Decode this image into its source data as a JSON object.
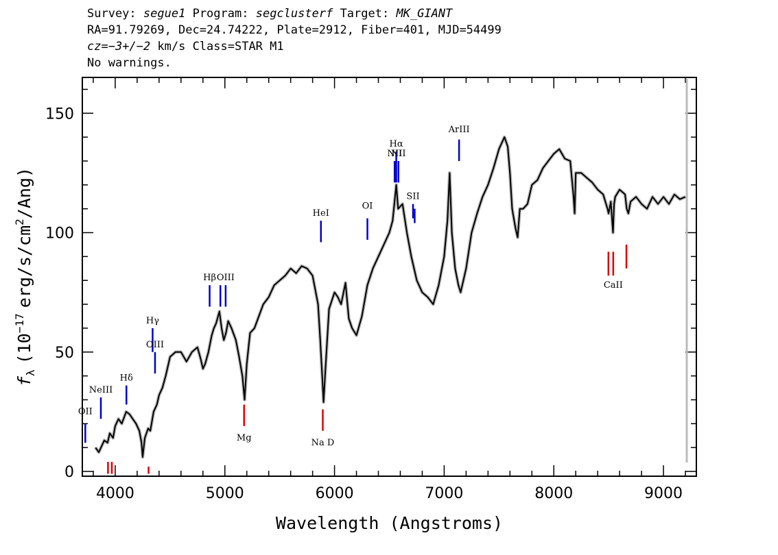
{
  "header": {
    "survey_label": "Survey:",
    "survey": "segue1",
    "program_label": "Program:",
    "program": "segclusterf",
    "target_label": "Target:",
    "target": "MK_GIANT",
    "line2": "RA=91.79269, Dec=24.74222, Plate=2912, Fiber=401, MJD=54499",
    "cz_label": "cz",
    "cz_value": "=−3+/−2",
    "cz_unit": "km/s Class=STAR M1",
    "line4": "No warnings."
  },
  "chart_data": {
    "type": "line",
    "xlabel": "Wavelength (Angstroms)",
    "ylabel_parts": {
      "f": "f",
      "sub": "λ",
      "pre": "(10",
      "exp1": "−17",
      "mid": "erg/s/cm",
      "exp2": "2",
      "post": "/Ang)"
    },
    "xlim": [
      3700,
      9300
    ],
    "ylim": [
      -2,
      165
    ],
    "xticks": [
      4000,
      5000,
      6000,
      7000,
      8000,
      9000
    ],
    "xtick_labels": [
      "4000",
      "5000",
      "6000",
      "7000",
      "8000",
      "9000"
    ],
    "yticks": [
      0,
      50,
      100,
      150
    ],
    "ytick_labels": [
      "0",
      "50",
      "100",
      "150"
    ],
    "colors": {
      "spectrum": "#000000",
      "error": "#bbbbbb",
      "emission": "#0000cc",
      "absorption": "#dd0000",
      "label_tick": "#000000"
    },
    "spectrum": {
      "x": [
        3820,
        3850,
        3880,
        3900,
        3930,
        3950,
        3980,
        4000,
        4030,
        4060,
        4100,
        4130,
        4160,
        4190,
        4220,
        4240,
        4250,
        4270,
        4300,
        4320,
        4350,
        4380,
        4400,
        4430,
        4460,
        4500,
        4550,
        4600,
        4650,
        4700,
        4750,
        4780,
        4800,
        4820,
        4850,
        4880,
        4900,
        4920,
        4950,
        4970,
        4990,
        5010,
        5030,
        5060,
        5100,
        5130,
        5160,
        5180,
        5200,
        5230,
        5270,
        5310,
        5350,
        5400,
        5450,
        5500,
        5550,
        5600,
        5650,
        5700,
        5750,
        5800,
        5850,
        5870,
        5890,
        5900,
        5920,
        5950,
        6000,
        6030,
        6060,
        6100,
        6130,
        6160,
        6200,
        6250,
        6300,
        6350,
        6400,
        6450,
        6500,
        6530,
        6563,
        6580,
        6620,
        6660,
        6700,
        6750,
        6800,
        6850,
        6900,
        6950,
        7000,
        7030,
        7050,
        7070,
        7100,
        7130,
        7150,
        7200,
        7250,
        7300,
        7350,
        7400,
        7450,
        7500,
        7550,
        7580,
        7600,
        7620,
        7650,
        7670,
        7690,
        7720,
        7760,
        7800,
        7850,
        7900,
        7950,
        8000,
        8050,
        8100,
        8150,
        8180,
        8190,
        8200,
        8250,
        8300,
        8350,
        8400,
        8450,
        8490,
        8500,
        8520,
        8540,
        8550,
        8560,
        8600,
        8650,
        8665,
        8680,
        8700,
        8750,
        8800,
        8850,
        8900,
        8950,
        9000,
        9050,
        9100,
        9150,
        9200
      ],
      "y": [
        10,
        8,
        11,
        13,
        12,
        16,
        14,
        19,
        22,
        20,
        25,
        24,
        22,
        20,
        17,
        12,
        6,
        14,
        18,
        17,
        25,
        28,
        32,
        35,
        40,
        48,
        50,
        50,
        46,
        50,
        52,
        47,
        43,
        45,
        50,
        57,
        60,
        62,
        67,
        60,
        55,
        58,
        63,
        60,
        55,
        48,
        40,
        30,
        45,
        58,
        60,
        65,
        70,
        73,
        78,
        80,
        82,
        85,
        83,
        86,
        85,
        82,
        70,
        55,
        38,
        29,
        45,
        68,
        75,
        73,
        70,
        79,
        64,
        60,
        57,
        65,
        78,
        85,
        90,
        95,
        100,
        105,
        120,
        110,
        112,
        100,
        90,
        80,
        75,
        73,
        70,
        78,
        90,
        105,
        125,
        100,
        85,
        78,
        75,
        85,
        100,
        108,
        115,
        120,
        127,
        135,
        140,
        136,
        125,
        110,
        102,
        98,
        110,
        110,
        112,
        120,
        122,
        127,
        130,
        133,
        135,
        131,
        130,
        115,
        108,
        125,
        125,
        123,
        121,
        118,
        116,
        110,
        108,
        113,
        100,
        112,
        115,
        118,
        116,
        110,
        108,
        113,
        115,
        112,
        110,
        115,
        112,
        115,
        112,
        116,
        114,
        115
      ]
    },
    "emission_lines": [
      {
        "x": 3727,
        "label": "OII",
        "ybar": [
          12,
          20
        ],
        "ylab": 24
      },
      {
        "x": 3869,
        "label": "NeIII",
        "ybar": [
          22,
          31
        ],
        "ylab": 33
      },
      {
        "x": 4102,
        "label": "Hδ",
        "ybar": [
          28,
          36
        ],
        "ylab": 38
      },
      {
        "x": 4341,
        "label": "Hγ",
        "ybar": [
          50,
          60
        ],
        "ylab": 62
      },
      {
        "x": 4363,
        "label": "OIII",
        "ybar": [
          41,
          50
        ],
        "ylab": 52
      },
      {
        "x": 4861,
        "label": "Hβ",
        "ybar": [
          69,
          78
        ],
        "ylab": 80
      },
      {
        "x": 4959,
        "label": "",
        "ybar": [
          69,
          78
        ],
        "ylab": 80
      },
      {
        "x": 5007,
        "label": "OIII",
        "ybar": [
          69,
          78
        ],
        "ylab": 80
      },
      {
        "x": 5876,
        "label": "HeI",
        "ybar": [
          96,
          105
        ],
        "ylab": 107
      },
      {
        "x": 6300,
        "label": "OI",
        "ybar": [
          97,
          106
        ],
        "ylab": 110
      },
      {
        "x": 6548,
        "label": "NII",
        "ybar": [
          121,
          130
        ],
        "ylab": 132
      },
      {
        "x": 6563,
        "label": "Hα",
        "ybar": [
          121,
          134
        ],
        "ylab": 136
      },
      {
        "x": 6583,
        "label": "NII",
        "ybar": [
          121,
          130
        ],
        "ylab": 132
      },
      {
        "x": 6716,
        "label": "SII",
        "ybar": [
          106,
          112
        ],
        "ylab": 114
      },
      {
        "x": 6731,
        "label": "",
        "ybar": [
          104,
          110
        ],
        "ylab": 114
      },
      {
        "x": 7136,
        "label": "ArIII",
        "ybar": [
          130,
          139
        ],
        "ylab": 142
      }
    ],
    "absorption_lines": [
      {
        "x": 3934,
        "label": "",
        "ybar": [
          -1,
          4
        ],
        "ylab": -5
      },
      {
        "x": 3969,
        "label": "",
        "ybar": [
          -1,
          4
        ],
        "ylab": -5
      },
      {
        "x": 4304,
        "label": "",
        "ybar": [
          -1,
          2
        ],
        "ylab": -5
      },
      {
        "x": 5175,
        "label": "Mg",
        "ybar": [
          19,
          28
        ],
        "ylab": 14
      },
      {
        "x": 5893,
        "label": "Na D",
        "ybar": [
          17,
          26
        ],
        "ylab": 12
      },
      {
        "x": 8498,
        "label": "",
        "ybar": [
          82,
          92
        ],
        "ylab": 78
      },
      {
        "x": 8542,
        "label": "CaII",
        "ybar": [
          82,
          92
        ],
        "ylab": 78
      },
      {
        "x": 8662,
        "label": "",
        "ybar": [
          85,
          95
        ],
        "ylab": 78
      }
    ]
  }
}
